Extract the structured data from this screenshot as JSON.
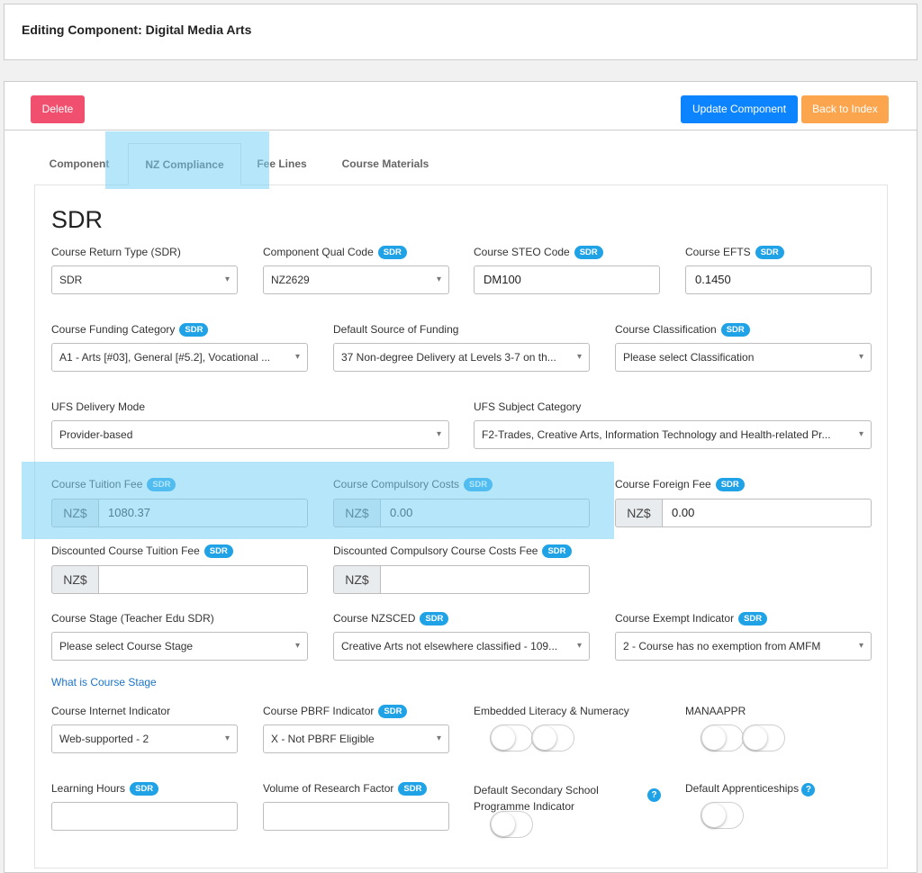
{
  "page": {
    "title": "Editing Component: Digital Media Arts"
  },
  "toolbar": {
    "delete_label": "Delete",
    "update_label": "Update Component",
    "back_label": "Back to Index"
  },
  "tabs": [
    "Component",
    "NZ Compliance",
    "Fee Lines",
    "Course Materials"
  ],
  "section_title": "SDR",
  "badge": "SDR",
  "currency": "NZ$",
  "help_symbol": "?",
  "fields": {
    "course_return_type": {
      "label": "Course Return Type (SDR)",
      "value": "SDR"
    },
    "component_qual_code": {
      "label": "Component Qual Code",
      "value": "NZ2629"
    },
    "course_steo_code": {
      "label": "Course STEO Code",
      "value": "DM100"
    },
    "course_efts": {
      "label": "Course EFTS",
      "value": "0.1450"
    },
    "course_funding_category": {
      "label": "Course Funding Category",
      "value": "A1 - Arts [#03], General [#5.2], Vocational ..."
    },
    "default_source_of_funding": {
      "label": "Default Source of Funding",
      "value": "37 Non-degree Delivery at Levels 3-7 on th..."
    },
    "course_classification": {
      "label": "Course Classification",
      "value": "Please select Classification"
    },
    "ufs_delivery_mode": {
      "label": "UFS Delivery Mode",
      "value": "Provider-based"
    },
    "ufs_subject_category": {
      "label": "UFS Subject Category",
      "value": "F2-Trades, Creative Arts, Information Technology and Health-related Pr..."
    },
    "course_tuition_fee": {
      "label": "Course Tuition Fee",
      "value": "1080.37"
    },
    "course_compulsory_costs": {
      "label": "Course Compulsory Costs",
      "value": "0.00"
    },
    "course_foreign_fee": {
      "label": "Course Foreign Fee",
      "value": "0.00"
    },
    "discounted_course_tuition_fee": {
      "label": "Discounted Course Tuition Fee",
      "value": ""
    },
    "discounted_compulsory_course_costs_fee": {
      "label": "Discounted Compulsory Course Costs Fee",
      "value": ""
    },
    "course_stage": {
      "label": "Course Stage (Teacher Edu SDR)",
      "value": "Please select Course Stage"
    },
    "course_nzsced": {
      "label": "Course NZSCED",
      "value": "Creative Arts not elsewhere classified - 109..."
    },
    "course_exempt_indicator": {
      "label": "Course Exempt Indicator",
      "value": "2 - Course has no exemption from AMFM"
    },
    "what_is_course_stage": "What is Course Stage",
    "course_internet_indicator": {
      "label": "Course Internet Indicator",
      "value": "Web-supported - 2"
    },
    "course_pbrf_indicator": {
      "label": "Course PBRF Indicator",
      "value": "X - Not PBRF Eligible"
    },
    "embedded_literacy_numeracy": {
      "label": "Embedded Literacy & Numeracy"
    },
    "manaappr": {
      "label": "MANAAPPR"
    },
    "learning_hours": {
      "label": "Learning Hours",
      "value": ""
    },
    "volume_of_research_factor": {
      "label": "Volume of Research Factor",
      "value": ""
    },
    "default_secondary_school_programme_indicator": {
      "label_line1": "Default Secondary School",
      "label_line2": "Programme Indicator"
    },
    "default_apprenticeships": {
      "label": "Default Apprenticeships"
    }
  },
  "colors": {
    "delete": "#f0506e",
    "update": "#0d84ff",
    "back": "#fba64f",
    "badge": "#1fa2e6",
    "highlight": "#78d2f5"
  }
}
